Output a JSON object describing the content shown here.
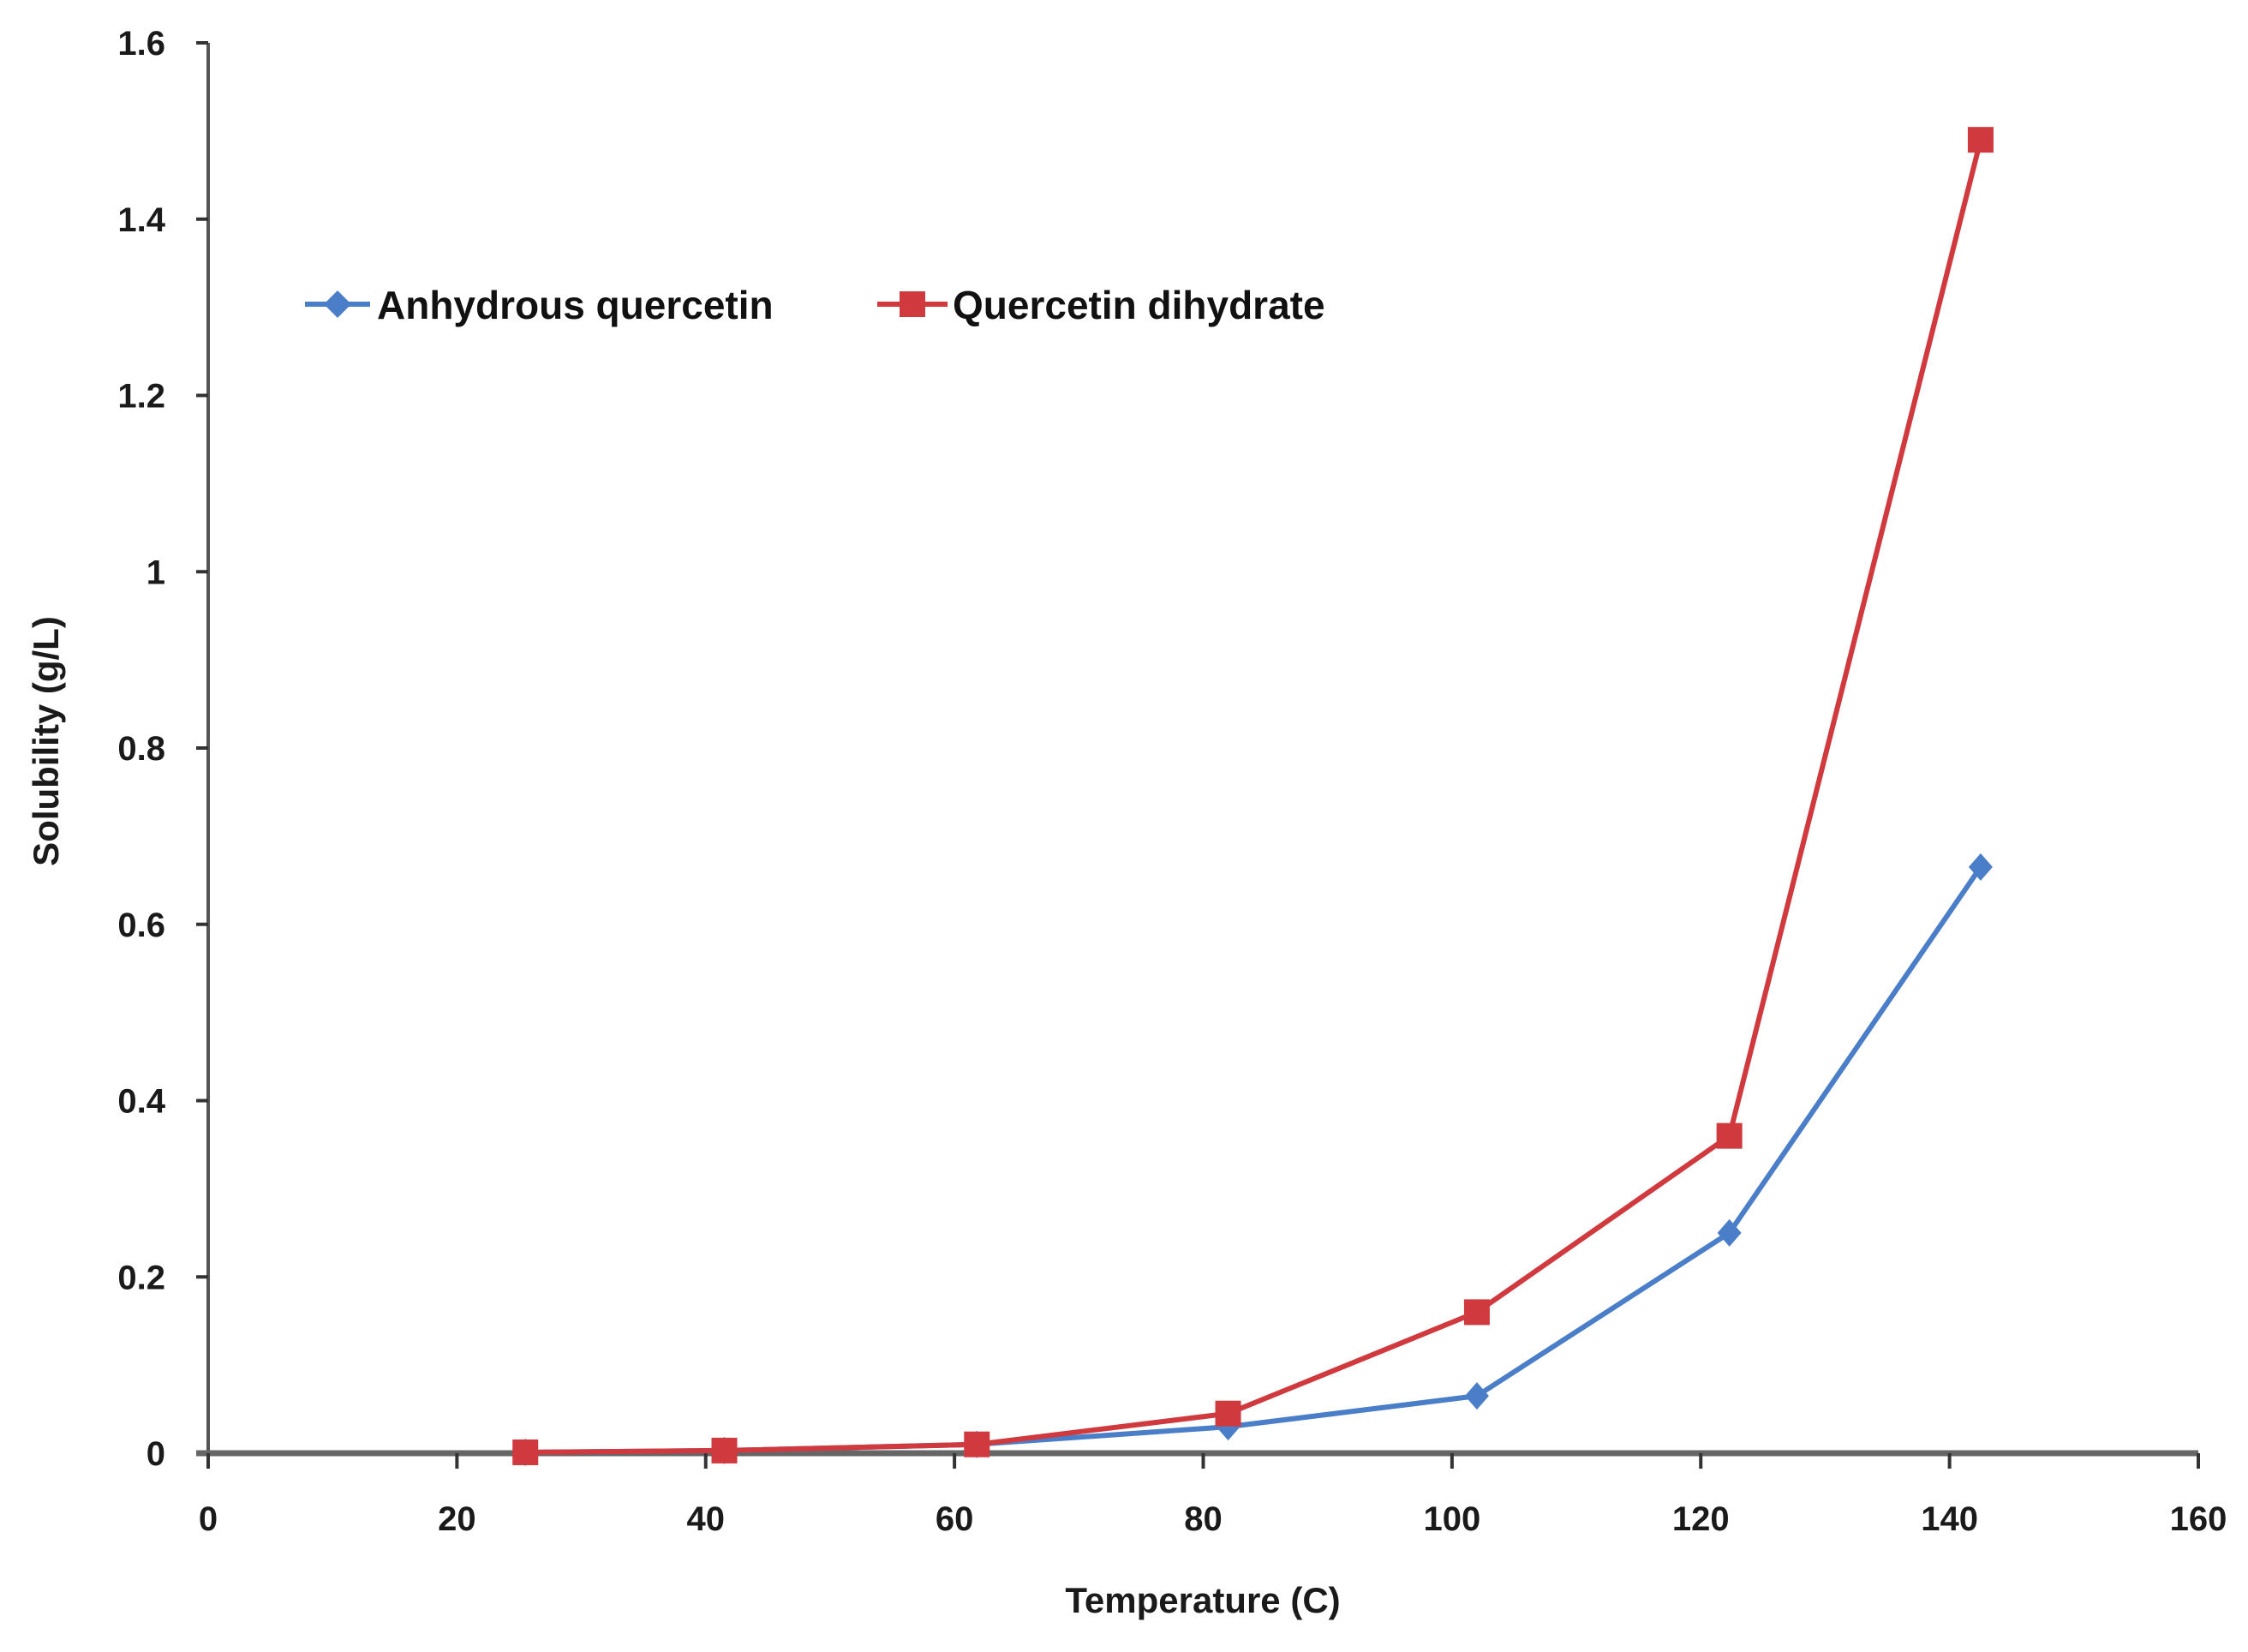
{
  "chart_data": {
    "type": "line",
    "title": "",
    "xlabel": "Temperature (C)",
    "ylabel": "Solubility (g/L)",
    "xlim": [
      0,
      160
    ],
    "ylim": [
      0,
      1.6
    ],
    "xticks": [
      0,
      20,
      40,
      60,
      80,
      100,
      120,
      140,
      160
    ],
    "yticks": [
      0,
      0.2,
      0.4,
      0.6,
      0.8,
      1,
      1.2,
      1.4,
      1.6
    ],
    "ytick_labels": [
      "0",
      "0.2",
      "0.4",
      "0.6",
      "0.8",
      "1",
      "1.2",
      "1.4",
      "1.6"
    ],
    "grid": false,
    "legend_position": "upper-left",
    "x": [
      25.5,
      41.5,
      61.8,
      82,
      102,
      122.3,
      142.5
    ],
    "series": [
      {
        "name": "Anhydrous quercetin",
        "color": "#4a7ec8",
        "marker": "diamond",
        "values": [
          0.001,
          0.003,
          0.01,
          0.03,
          0.065,
          0.25,
          0.665
        ]
      },
      {
        "name": "Quercetin dihydrate",
        "color": "#d03a3e",
        "marker": "square",
        "values": [
          0.001,
          0.003,
          0.01,
          0.045,
          0.16,
          0.36,
          1.49
        ]
      }
    ]
  }
}
